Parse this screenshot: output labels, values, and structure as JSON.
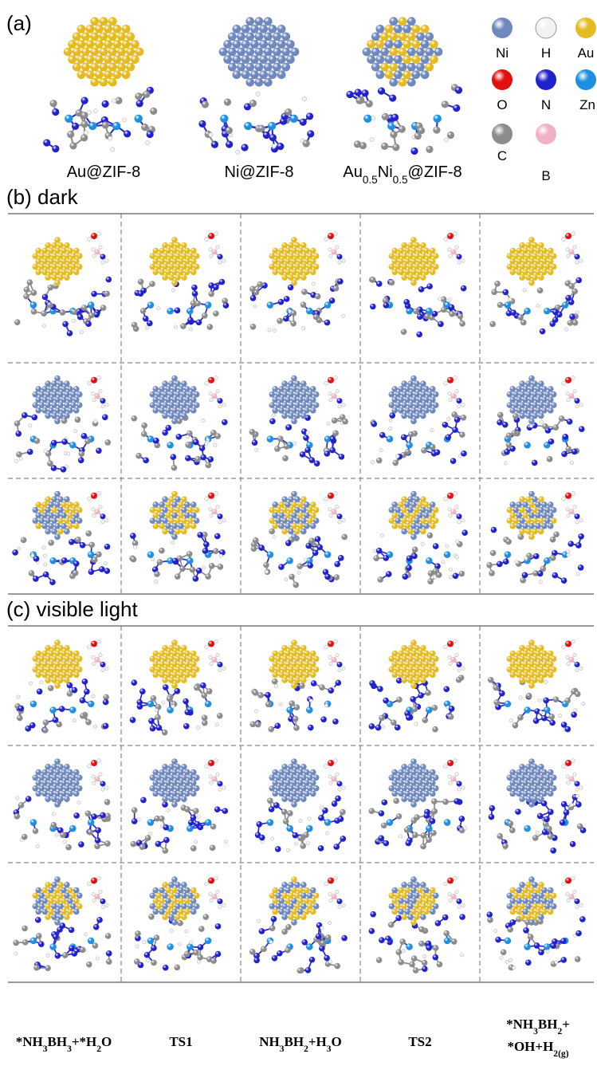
{
  "panels": {
    "a": {
      "label": "(a)",
      "structures": [
        [
          {
            "text": "Au@ZIF-8"
          }
        ],
        [
          {
            "text": "Ni@ZIF-8"
          }
        ],
        [
          {
            "text": "Au"
          },
          {
            "sub": "0.5"
          },
          {
            "text": "Ni"
          },
          {
            "sub": "0.5"
          },
          {
            "text": "@ZIF-8"
          }
        ]
      ],
      "legend": [
        {
          "element": "Ni",
          "color": "#6f88bd"
        },
        {
          "element": "H",
          "color": "#f2f2f2"
        },
        {
          "element": "Au",
          "color": "#e5bb22"
        },
        {
          "element": "O",
          "color": "#e01010"
        },
        {
          "element": "N",
          "color": "#2222cc"
        },
        {
          "element": "Zn",
          "color": "#1f8fe0"
        },
        {
          "element": "C",
          "color": "#8c8c8c"
        },
        {
          "element": "B",
          "color": "#f2b2c6"
        }
      ]
    },
    "b": {
      "label": "(b) dark"
    },
    "c": {
      "label": "(c) visible light"
    }
  },
  "steps": [
    [
      [
        {
          "text": "*NH"
        },
        {
          "sub": "3"
        },
        {
          "text": "BH"
        },
        {
          "sub": "3"
        },
        {
          "text": "+*H"
        },
        {
          "sub": "2"
        },
        {
          "text": "O"
        }
      ]
    ],
    [
      [
        {
          "text": "TS1"
        }
      ]
    ],
    [
      [
        {
          "text": "NH"
        },
        {
          "sub": "3"
        },
        {
          "text": "BH"
        },
        {
          "sub": "2"
        },
        {
          "text": "+H"
        },
        {
          "sub": "3"
        },
        {
          "text": "O"
        }
      ]
    ],
    [
      [
        {
          "text": "TS2"
        }
      ]
    ],
    [
      [
        {
          "text": "*NH"
        },
        {
          "sub": "3"
        },
        {
          "text": "BH"
        },
        {
          "sub": "2"
        },
        {
          "text": "+"
        }
      ],
      [
        {
          "text": "*OH+H"
        },
        {
          "sub": "2(g)"
        }
      ]
    ]
  ]
}
